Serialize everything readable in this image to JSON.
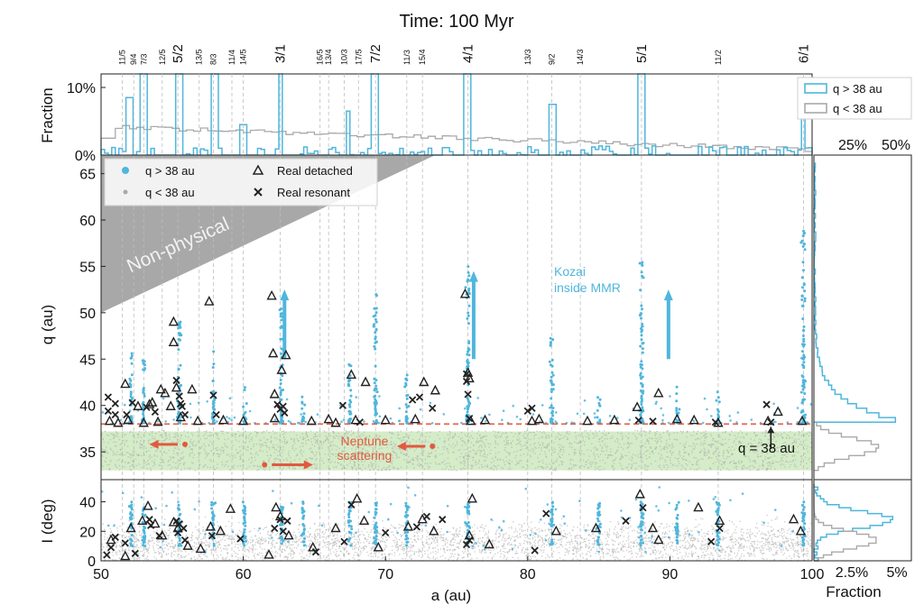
{
  "chart_data": {
    "type": "scatter",
    "title": "Time: 100 Myr",
    "xlabel": "a (au)",
    "xlim": [
      50,
      100
    ],
    "xticks": [
      "50",
      "60",
      "70",
      "80",
      "90",
      "100"
    ],
    "colors": {
      "blue": "#4fb6dd",
      "gray": "#a9a9a9",
      "red": "#e2593f",
      "green_band": "#c6e6b4",
      "nonphysical": "#a8a8a8"
    },
    "resonances": [
      {
        "label": "11/5",
        "a": 51.5,
        "major": false
      },
      {
        "label": "9/4",
        "a": 52.3,
        "major": false
      },
      {
        "label": "7/3",
        "a": 53.0,
        "major": false
      },
      {
        "label": "12/5",
        "a": 54.3,
        "major": false
      },
      {
        "label": "5/2",
        "a": 55.4,
        "major": true
      },
      {
        "label": "13/5",
        "a": 56.9,
        "major": false
      },
      {
        "label": "8/3",
        "a": 57.9,
        "major": false
      },
      {
        "label": "11/4",
        "a": 59.2,
        "major": false
      },
      {
        "label": "14/5",
        "a": 60.0,
        "major": false
      },
      {
        "label": "3/1",
        "a": 62.6,
        "major": true
      },
      {
        "label": "16/5",
        "a": 65.4,
        "major": false
      },
      {
        "label": "13/4",
        "a": 66.0,
        "major": false
      },
      {
        "label": "10/3",
        "a": 67.1,
        "major": false
      },
      {
        "label": "17/5",
        "a": 68.1,
        "major": false
      },
      {
        "label": "7/2",
        "a": 69.3,
        "major": true
      },
      {
        "label": "11/3",
        "a": 71.5,
        "major": false
      },
      {
        "label": "15/4",
        "a": 72.6,
        "major": false
      },
      {
        "label": "4/1",
        "a": 75.8,
        "major": true
      },
      {
        "label": "13/3",
        "a": 80.0,
        "major": false
      },
      {
        "label": "9/2",
        "a": 81.7,
        "major": false
      },
      {
        "label": "14/3",
        "a": 83.7,
        "major": false
      },
      {
        "label": "5/1",
        "a": 88.0,
        "major": true
      },
      {
        "label": "11/2",
        "a": 93.4,
        "major": false
      },
      {
        "label": "6/1",
        "a": 99.4,
        "major": true
      }
    ],
    "panels": {
      "fraction_top": {
        "ylabel": "Fraction",
        "yticks": [
          "0%",
          "10%"
        ],
        "ylim_percent": [
          0,
          12
        ],
        "series": [
          {
            "name": "q > 38 au",
            "color": "#4fb6dd",
            "peaks": [
              [
                52.0,
                8.5
              ],
              [
                53.0,
                12
              ],
              [
                55.5,
                12
              ],
              [
                58.0,
                12
              ],
              [
                60.0,
                4.5
              ],
              [
                62.6,
                12
              ],
              [
                67.4,
                6.5
              ],
              [
                69.3,
                12
              ],
              [
                75.8,
                12
              ],
              [
                81.7,
                7.5
              ],
              [
                88.0,
                12
              ],
              [
                99.4,
                7.8
              ]
            ]
          },
          {
            "name": "q < 38 au",
            "color": "#a9a9a9",
            "level_start": 4.2,
            "level_end": 0.8
          }
        ]
      },
      "q_main": {
        "ylabel": "q (au)",
        "ylim": [
          32,
          67
        ],
        "yticks": [
          "35",
          "40",
          "45",
          "50",
          "55",
          "60",
          "65"
        ],
        "threshold_q": 38,
        "legend": [
          {
            "marker": "circle-blue",
            "label": "q > 38 au"
          },
          {
            "marker": "circle-gray",
            "label": "q < 38 au"
          },
          {
            "marker": "triangle",
            "label": "Real detached"
          },
          {
            "marker": "cross",
            "label": "Real resonant"
          }
        ],
        "annotations": {
          "nonphysical": "Non-physical",
          "kozai_line1": "Kozai",
          "kozai_line2": "inside MMR",
          "neptune_line1": "Neptune",
          "neptune_line2": "scattering",
          "q38": "q = 38 au"
        },
        "real_detached": [
          [
            50.6,
            38.3
          ],
          [
            51.2,
            38.1
          ],
          [
            51.7,
            42.3
          ],
          [
            51.9,
            38.4
          ],
          [
            52.6,
            39.9
          ],
          [
            53.0,
            38.1
          ],
          [
            53.4,
            40.1
          ],
          [
            53.6,
            40.3
          ],
          [
            54.0,
            38.2
          ],
          [
            54.2,
            41.7
          ],
          [
            54.5,
            41.3
          ],
          [
            54.9,
            39.9
          ],
          [
            55.1,
            49.0
          ],
          [
            55.1,
            46.8
          ],
          [
            55.3,
            41.9
          ],
          [
            55.6,
            38.7
          ],
          [
            56.4,
            41.7
          ],
          [
            56.8,
            38.3
          ],
          [
            57.6,
            51.2
          ],
          [
            58.6,
            38.4
          ],
          [
            60.0,
            38.3
          ],
          [
            62.0,
            51.8
          ],
          [
            62.1,
            45.6
          ],
          [
            62.2,
            41.2
          ],
          [
            62.2,
            38.6
          ],
          [
            62.7,
            43.8
          ],
          [
            63.0,
            45.4
          ],
          [
            64.8,
            38.3
          ],
          [
            66.0,
            38.5
          ],
          [
            66.5,
            38.1
          ],
          [
            67.6,
            43.3
          ],
          [
            67.9,
            38.4
          ],
          [
            68.6,
            42.5
          ],
          [
            70.0,
            38.4
          ],
          [
            72.1,
            38.5
          ],
          [
            72.7,
            42.5
          ],
          [
            73.5,
            41.6
          ],
          [
            75.6,
            52.0
          ],
          [
            75.8,
            43.5
          ],
          [
            75.9,
            42.9
          ],
          [
            76.0,
            38.3
          ],
          [
            77.0,
            38.4
          ],
          [
            80.3,
            38.3
          ],
          [
            80.8,
            38.5
          ],
          [
            84.2,
            38.3
          ],
          [
            86.1,
            38.4
          ],
          [
            87.7,
            39.8
          ],
          [
            89.2,
            41.3
          ],
          [
            90.5,
            38.5
          ],
          [
            91.7,
            38.4
          ],
          [
            93.4,
            38.1
          ],
          [
            96.9,
            38.3
          ],
          [
            97.6,
            39.3
          ],
          [
            99.3,
            38.3
          ]
        ],
        "real_resonant": [
          [
            50.5,
            40.9
          ],
          [
            50.5,
            39.4
          ],
          [
            51.0,
            40.2
          ],
          [
            51.0,
            39.0
          ],
          [
            51.8,
            39.0
          ],
          [
            52.2,
            40.3
          ],
          [
            53.2,
            39.8
          ],
          [
            53.8,
            39.3
          ],
          [
            55.3,
            42.7
          ],
          [
            55.5,
            41.0
          ],
          [
            55.6,
            40.2
          ],
          [
            55.7,
            39.9
          ],
          [
            55.9,
            39.0
          ],
          [
            57.9,
            41.1
          ],
          [
            58.1,
            39.0
          ],
          [
            62.4,
            40.1
          ],
          [
            62.6,
            39.6
          ],
          [
            62.8,
            39.9
          ],
          [
            62.9,
            39.2
          ],
          [
            67.0,
            40.0
          ],
          [
            68.2,
            38.2
          ],
          [
            71.9,
            40.6
          ],
          [
            72.4,
            40.9
          ],
          [
            73.3,
            39.7
          ],
          [
            75.7,
            43.4
          ],
          [
            75.7,
            42.6
          ],
          [
            75.8,
            41.2
          ],
          [
            75.9,
            38.6
          ],
          [
            80.0,
            39.4
          ],
          [
            80.3,
            39.7
          ],
          [
            87.8,
            38.4
          ],
          [
            88.8,
            38.3
          ],
          [
            93.2,
            38.2
          ],
          [
            96.8,
            40.1
          ],
          [
            97.1,
            38.2
          ]
        ]
      },
      "inclination": {
        "ylabel": "I (deg)",
        "ylim": [
          0,
          55
        ],
        "yticks": [
          "0",
          "20",
          "40"
        ],
        "real_detached": [
          [
            50.7,
            14
          ],
          [
            51.7,
            3
          ],
          [
            52.1,
            22
          ],
          [
            52.9,
            27
          ],
          [
            53.3,
            37
          ],
          [
            53.8,
            25
          ],
          [
            54.3,
            17
          ],
          [
            55.1,
            26
          ],
          [
            55.4,
            22
          ],
          [
            56.1,
            10
          ],
          [
            57.0,
            8
          ],
          [
            57.7,
            23
          ],
          [
            58.4,
            20
          ],
          [
            59.1,
            35
          ],
          [
            61.8,
            4
          ],
          [
            62.3,
            36
          ],
          [
            62.6,
            30
          ],
          [
            63.2,
            17
          ],
          [
            64.9,
            9
          ],
          [
            66.5,
            22
          ],
          [
            68.0,
            42
          ],
          [
            68.5,
            27
          ],
          [
            69.5,
            9
          ],
          [
            71.6,
            23
          ],
          [
            72.6,
            28
          ],
          [
            73.4,
            20
          ],
          [
            75.9,
            17
          ],
          [
            76.1,
            42
          ],
          [
            77.3,
            11
          ],
          [
            82.0,
            20
          ],
          [
            84.8,
            22
          ],
          [
            87.9,
            45
          ],
          [
            88.8,
            22
          ],
          [
            89.2,
            14
          ],
          [
            92.0,
            36
          ],
          [
            93.5,
            27
          ],
          [
            98.7,
            28
          ],
          [
            99.2,
            20
          ]
        ],
        "real_resonant": [
          [
            50.4,
            4
          ],
          [
            50.7,
            9
          ],
          [
            51.0,
            16
          ],
          [
            51.7,
            12
          ],
          [
            52.4,
            5
          ],
          [
            53.4,
            28
          ],
          [
            53.5,
            24
          ],
          [
            54.1,
            17
          ],
          [
            55.3,
            27
          ],
          [
            55.4,
            19
          ],
          [
            55.5,
            25
          ],
          [
            55.8,
            22
          ],
          [
            55.9,
            14
          ],
          [
            57.8,
            17
          ],
          [
            59.8,
            15
          ],
          [
            62.2,
            22
          ],
          [
            62.6,
            28
          ],
          [
            62.8,
            20
          ],
          [
            63.1,
            27
          ],
          [
            65.1,
            6
          ],
          [
            67.1,
            13
          ],
          [
            67.6,
            38
          ],
          [
            70.0,
            19
          ],
          [
            72.2,
            23
          ],
          [
            72.9,
            30
          ],
          [
            74.0,
            28
          ],
          [
            75.7,
            11
          ],
          [
            75.9,
            14
          ],
          [
            80.5,
            7
          ],
          [
            81.3,
            32
          ],
          [
            86.9,
            27
          ],
          [
            88.1,
            36
          ],
          [
            92.9,
            13
          ],
          [
            93.5,
            22
          ]
        ]
      },
      "hist_q": {
        "xticks": [
          "25%",
          "50%"
        ]
      },
      "hist_i": {
        "xticks": [
          "2.5%",
          "5%"
        ],
        "xlabel": "Fraction"
      }
    }
  }
}
